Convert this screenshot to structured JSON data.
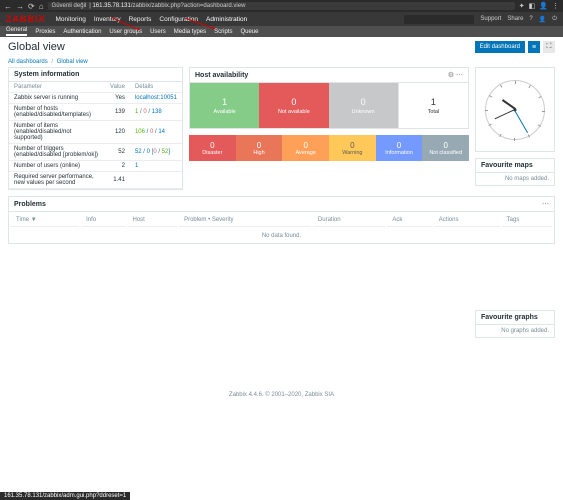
{
  "browser": {
    "insecure_label": "Güvenli değil",
    "ip": "161.35.78.131",
    "path": "/zabbix/zabbix.php?action=dashboard.view",
    "support": "Support",
    "share": "Share"
  },
  "topnav": {
    "logo": "ZABBIX",
    "items": [
      "Monitoring",
      "Inventory",
      "Reports",
      "Configuration",
      "Administration"
    ],
    "active_index": 4
  },
  "subnav": {
    "items": [
      "General",
      "Proxies",
      "Authentication",
      "User groups",
      "Users",
      "Media types",
      "Scripts",
      "Queue"
    ],
    "active_index": 0
  },
  "page": {
    "title": "Global view",
    "edit_button": "Edit dashboard",
    "breadcrumb": [
      "All dashboards",
      "Global view"
    ]
  },
  "sysinfo": {
    "title": "System information",
    "headers": [
      "Parameter",
      "Value",
      "Details"
    ],
    "rows": [
      {
        "param": "Zabbix server is running",
        "value": "Yes",
        "details": "localhost:10051"
      },
      {
        "param": "Number of hosts (enabled/disabled/templates)",
        "value": "139",
        "details_html": "<span class='text-green'>1</span> / <span class='text-red'>0</span> / 138"
      },
      {
        "param": "Number of items (enabled/disabled/not supported)",
        "value": "120",
        "details_html": "<span class='text-green'>106</span> / <span class='text-red'>0</span> / 14"
      },
      {
        "param": "Number of triggers (enabled/disabled [problem/ok])",
        "value": "52",
        "details_html": "52 / 0 [<span class='text-red'>0</span> / <span class='text-green'>52</span>]"
      },
      {
        "param": "Number of users (online)",
        "value": "2",
        "details": "1"
      },
      {
        "param": "Required server performance, new values per second",
        "value": "1.41",
        "details": ""
      }
    ]
  },
  "hostavail": {
    "title": "Host availability",
    "cells": [
      {
        "num": "1",
        "label": "Available",
        "color": "#86cc89"
      },
      {
        "num": "0",
        "label": "Not available",
        "color": "#e45959"
      },
      {
        "num": "0",
        "label": "Unknown",
        "color": "#c7c8c9"
      },
      {
        "num": "1",
        "label": "Total",
        "color": "#ffffff",
        "total": true
      }
    ]
  },
  "severity": {
    "cells": [
      {
        "num": "0",
        "label": "Disaster",
        "bg": "#e45959",
        "fg": "#ffffff"
      },
      {
        "num": "0",
        "label": "High",
        "bg": "#e97659",
        "fg": "#ffffff"
      },
      {
        "num": "0",
        "label": "Average",
        "bg": "#ffa059",
        "fg": "#ffffff"
      },
      {
        "num": "0",
        "label": "Warning",
        "bg": "#ffc859",
        "fg": "#5b5b5b"
      },
      {
        "num": "0",
        "label": "Information",
        "bg": "#7499ff",
        "fg": "#ffffff"
      },
      {
        "num": "0",
        "label": "Not classified",
        "bg": "#97aab3",
        "fg": "#ffffff"
      }
    ]
  },
  "problems": {
    "title": "Problems",
    "headers": [
      "Time ▼",
      "Info",
      "Host",
      "Problem • Severity",
      "Duration",
      "Ack",
      "Actions",
      "Tags"
    ],
    "no_data": "No data found."
  },
  "fav_maps": {
    "title": "Favourite maps",
    "empty": "No maps added."
  },
  "fav_graphs": {
    "title": "Favourite graphs",
    "empty": "No graphs added."
  },
  "clock": {
    "hour_angle": 215,
    "min_angle": 155,
    "sec_angle": 60
  },
  "footer": "Zabbix 4.4.6. © 2001–2020, Zabbix SIA",
  "statusbar": "161.35.78.131/zabbix/adm.gui.php?ddreset=1"
}
